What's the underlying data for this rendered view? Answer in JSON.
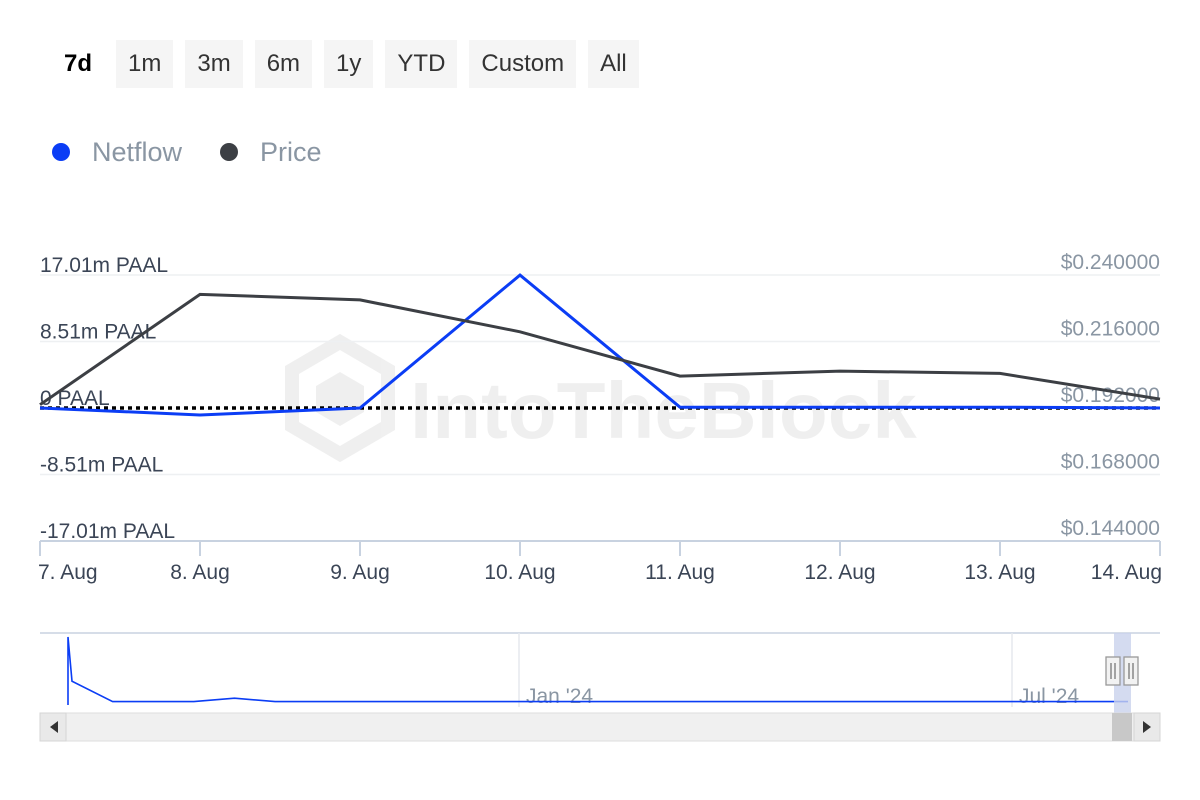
{
  "range_buttons": [
    {
      "label": "7d",
      "active": true
    },
    {
      "label": "1m",
      "active": false
    },
    {
      "label": "3m",
      "active": false
    },
    {
      "label": "6m",
      "active": false
    },
    {
      "label": "1y",
      "active": false
    },
    {
      "label": "YTD",
      "active": false
    },
    {
      "label": "Custom",
      "active": false
    },
    {
      "label": "All",
      "active": false
    }
  ],
  "legend": [
    {
      "name": "Netflow",
      "color": "#0b3df5"
    },
    {
      "name": "Price",
      "color": "#3c3f44"
    }
  ],
  "watermark": "IntoTheBlock",
  "chart_data": {
    "type": "line",
    "x": [
      "7. Aug",
      "8. Aug",
      "9. Aug",
      "10. Aug",
      "11. Aug",
      "12. Aug",
      "13. Aug",
      "14. Aug"
    ],
    "series": [
      {
        "name": "Netflow",
        "axis": "left",
        "color": "#0b3df5",
        "values": [
          0,
          -0.9,
          0,
          17.0,
          0.1,
          0.1,
          0.1,
          0
        ]
      },
      {
        "name": "Price",
        "axis": "right",
        "color": "#3c3f44",
        "values": [
          0.1932,
          0.233,
          0.231,
          0.2195,
          0.2035,
          0.2053,
          0.2045,
          0.1952
        ]
      }
    ],
    "left_axis": {
      "ticks": [
        "17.01m PAAL",
        "8.51m PAAL",
        "0 PAAL",
        "-8.51m PAAL",
        "-17.01m PAAL"
      ],
      "values": [
        17.01,
        8.51,
        0,
        -8.51,
        -17.01
      ],
      "range": [
        -17.01,
        17.01
      ]
    },
    "right_axis": {
      "ticks": [
        "$0.240000",
        "$0.216000",
        "$0.192000",
        "$0.168000",
        "$0.144000"
      ],
      "values": [
        0.24,
        0.216,
        0.192,
        0.168,
        0.144
      ],
      "range": [
        0.144,
        0.24
      ]
    },
    "zero_line": "dotted",
    "grid": true,
    "navigator": {
      "labels": [
        "Jan '24",
        "Jul '24"
      ],
      "values": [
        1.0,
        0.35,
        0.05,
        0.05,
        0.05,
        0.1,
        0.05,
        0.05,
        0.05,
        0.05,
        0.05,
        0.05,
        0.05,
        0.05,
        0.05,
        0.05,
        0.05,
        0.05,
        0.05,
        0.05,
        0.05,
        0.05,
        0.05,
        0.05,
        0.05,
        0.05,
        0.05,
        0.05
      ]
    }
  }
}
